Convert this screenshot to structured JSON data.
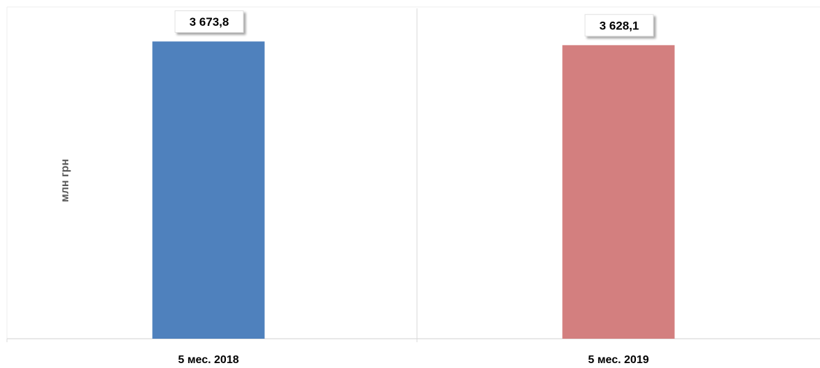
{
  "chart_data": {
    "type": "bar",
    "categories": [
      "5 мес. 2018",
      "5 мес. 2019"
    ],
    "values": [
      3673.8,
      3628.1
    ],
    "value_labels": [
      "3 673,8",
      "3 628,1"
    ],
    "colors": [
      "#4f81bd",
      "#d37f7f"
    ],
    "title": "",
    "xlabel": "",
    "ylabel": "млн грн",
    "ylim": [
      0,
      4100
    ],
    "grid": false,
    "legend": "none"
  }
}
